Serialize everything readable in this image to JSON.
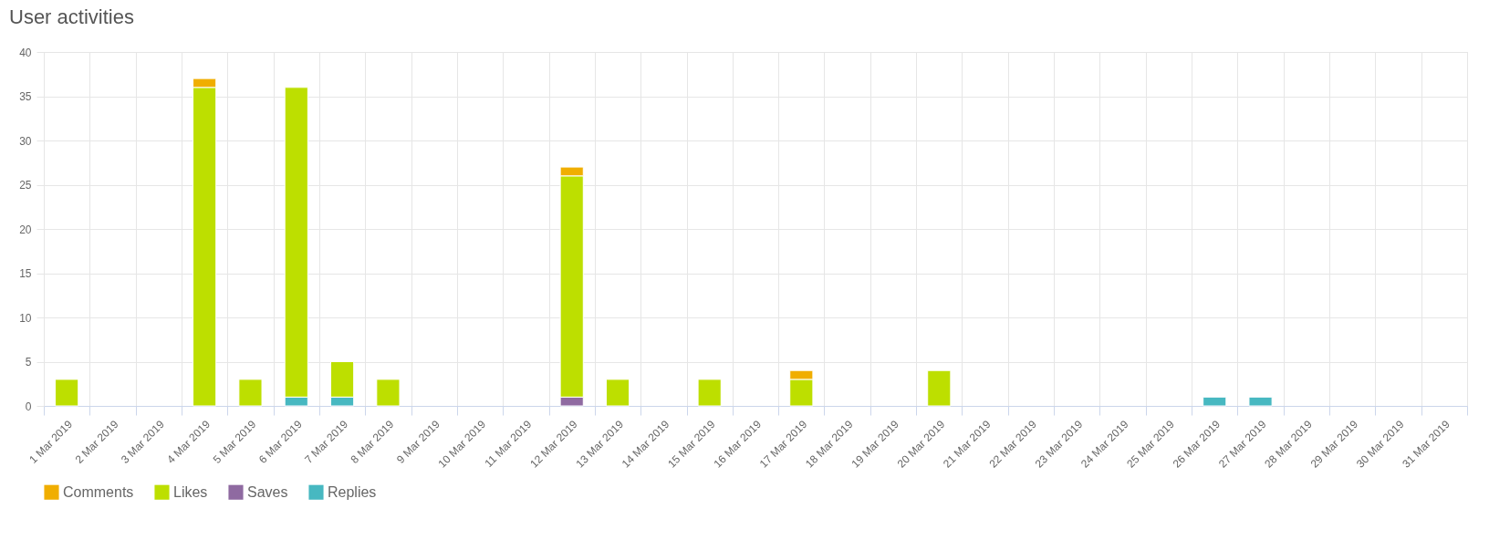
{
  "chart_data": {
    "type": "bar",
    "title": "User activities",
    "stacked": true,
    "grid": true,
    "legend": "bottom",
    "categories": [
      "1 Mar 2019",
      "2 Mar 2019",
      "3 Mar 2019",
      "4 Mar 2019",
      "5 Mar 2019",
      "6 Mar 2019",
      "7 Mar 2019",
      "8 Mar 2019",
      "9 Mar 2019",
      "10 Mar 2019",
      "11 Mar 2019",
      "12 Mar 2019",
      "13 Mar 2019",
      "14 Mar 2019",
      "15 Mar 2019",
      "16 Mar 2019",
      "17 Mar 2019",
      "18 Mar 2019",
      "19 Mar 2019",
      "20 Mar 2019",
      "21 Mar 2019",
      "22 Mar 2019",
      "23 Mar 2019",
      "24 Mar 2019",
      "25 Mar 2019",
      "26 Mar 2019",
      "27 Mar 2019",
      "28 Mar 2019",
      "29 Mar 2019",
      "30 Mar 2019",
      "31 Mar 2019"
    ],
    "series": [
      {
        "name": "Replies",
        "color": "#47b8c1",
        "values": [
          null,
          null,
          null,
          null,
          null,
          1,
          1,
          null,
          null,
          null,
          null,
          null,
          null,
          null,
          null,
          null,
          null,
          null,
          null,
          null,
          null,
          null,
          null,
          null,
          null,
          1,
          1,
          null,
          null,
          null,
          null
        ]
      },
      {
        "name": "Saves",
        "color": "#8f6aa1",
        "values": [
          null,
          null,
          null,
          null,
          null,
          null,
          null,
          null,
          null,
          null,
          null,
          1,
          null,
          null,
          null,
          null,
          null,
          null,
          null,
          null,
          null,
          null,
          null,
          null,
          null,
          null,
          null,
          null,
          null,
          null,
          null
        ]
      },
      {
        "name": "Likes",
        "color": "#bddf00",
        "values": [
          3,
          null,
          null,
          36,
          3,
          35,
          4,
          3,
          null,
          null,
          null,
          25,
          3,
          null,
          3,
          null,
          3,
          null,
          null,
          4,
          null,
          null,
          null,
          null,
          null,
          null,
          null,
          null,
          null,
          null,
          null
        ]
      },
      {
        "name": "Comments",
        "color": "#f0ae00",
        "values": [
          null,
          null,
          null,
          1,
          null,
          null,
          null,
          null,
          null,
          null,
          null,
          1,
          null,
          null,
          null,
          null,
          1,
          null,
          null,
          null,
          null,
          null,
          null,
          null,
          null,
          null,
          null,
          null,
          null,
          null,
          null
        ]
      }
    ],
    "ylim": [
      0,
      40
    ],
    "yticks": [
      0,
      5,
      10,
      15,
      20,
      25,
      30,
      35,
      40
    ]
  }
}
